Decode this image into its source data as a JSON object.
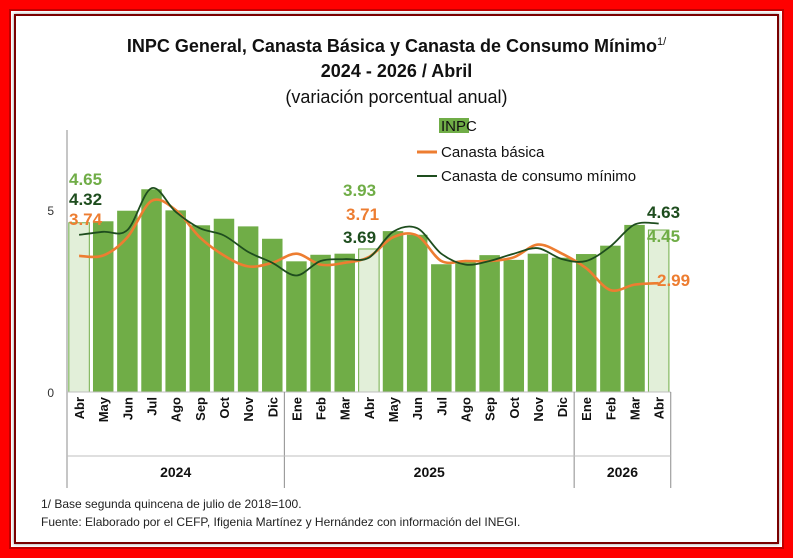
{
  "title": {
    "line1": "INPC General, Canasta Básica  y Canasta de Consumo Mínimo",
    "line1_sup": "1/",
    "line2": "2024 - 2026 / Abril",
    "line3": "(variación porcentual anual)"
  },
  "footnotes": {
    "note1": "1/ Base segunda quincena de julio de 2018=100.",
    "source": "Fuente: Elaborado por el CEFP, Ifigenia Martínez y Hernández con información del INEGI."
  },
  "colors": {
    "frame": "#ff0000",
    "bar": "#70ad47",
    "bar_highlight": "#e2efd9",
    "canasta_basica": "#ed7d31",
    "consumo_minimo": "#1e4d1e",
    "label_inpc": "#70ad47",
    "label_basica": "#ed7d31",
    "label_minimo": "#1e4d1e"
  },
  "chart_data": {
    "type": "bar",
    "categories": [
      "Abr",
      "May",
      "Jun",
      "Jul",
      "Ago",
      "Sep",
      "Oct",
      "Nov",
      "Dic",
      "Ene",
      "Feb",
      "Mar",
      "Abr",
      "May",
      "Jun",
      "Jul",
      "Ago",
      "Sep",
      "Oct",
      "Nov",
      "Dic",
      "Ene",
      "Feb",
      "Mar",
      "Abr"
    ],
    "years": [
      {
        "label": "2024",
        "start": 0,
        "end": 8
      },
      {
        "label": "2025",
        "start": 9,
        "end": 20
      },
      {
        "label": "2026",
        "start": 21,
        "end": 24
      }
    ],
    "highlight_indices": [
      0,
      12,
      24
    ],
    "ylim": [
      0,
      7
    ],
    "yticks": [
      0,
      5
    ],
    "series": [
      {
        "name": "INPC",
        "kind": "bar",
        "values": [
          4.65,
          4.69,
          4.98,
          5.57,
          4.99,
          4.58,
          4.76,
          4.55,
          4.21,
          3.59,
          3.77,
          3.8,
          3.93,
          4.42,
          4.32,
          3.51,
          3.57,
          3.76,
          3.63,
          3.8,
          3.69,
          3.79,
          4.02,
          4.59,
          4.45
        ]
      },
      {
        "name": "Canasta básica",
        "kind": "line",
        "values": [
          3.74,
          3.75,
          4.25,
          5.25,
          5.0,
          4.25,
          3.75,
          3.45,
          3.55,
          3.8,
          3.5,
          3.55,
          3.71,
          4.25,
          4.3,
          3.6,
          3.6,
          3.6,
          3.7,
          4.05,
          3.8,
          3.4,
          2.8,
          2.95,
          2.99
        ]
      },
      {
        "name": "Canasta de consumo mínimo",
        "kind": "line",
        "values": [
          4.32,
          4.4,
          4.45,
          5.6,
          4.95,
          4.5,
          4.3,
          3.85,
          3.55,
          3.2,
          3.6,
          3.65,
          3.69,
          4.4,
          4.5,
          3.8,
          3.5,
          3.6,
          3.8,
          3.95,
          3.65,
          3.6,
          4.0,
          4.6,
          4.63
        ]
      }
    ],
    "annotations": [
      {
        "series": "INPC",
        "index": 0,
        "text": "4.65"
      },
      {
        "series": "Canasta de consumo mínimo",
        "index": 0,
        "text": "4.32"
      },
      {
        "series": "Canasta básica",
        "index": 0,
        "text": "3.74"
      },
      {
        "series": "INPC",
        "index": 12,
        "text": "3.93"
      },
      {
        "series": "Canasta básica",
        "index": 12,
        "text": "3.71"
      },
      {
        "series": "Canasta de consumo mínimo",
        "index": 12,
        "text": "3.69"
      },
      {
        "series": "Canasta de consumo mínimo",
        "index": 24,
        "text": "4.63"
      },
      {
        "series": "INPC",
        "index": 24,
        "text": "4.45"
      },
      {
        "series": "Canasta básica",
        "index": 24,
        "text": "2.99"
      }
    ],
    "legend": {
      "position": "top-right",
      "items": [
        "INPC",
        "Canasta básica",
        "Canasta de consumo mínimo"
      ]
    }
  }
}
